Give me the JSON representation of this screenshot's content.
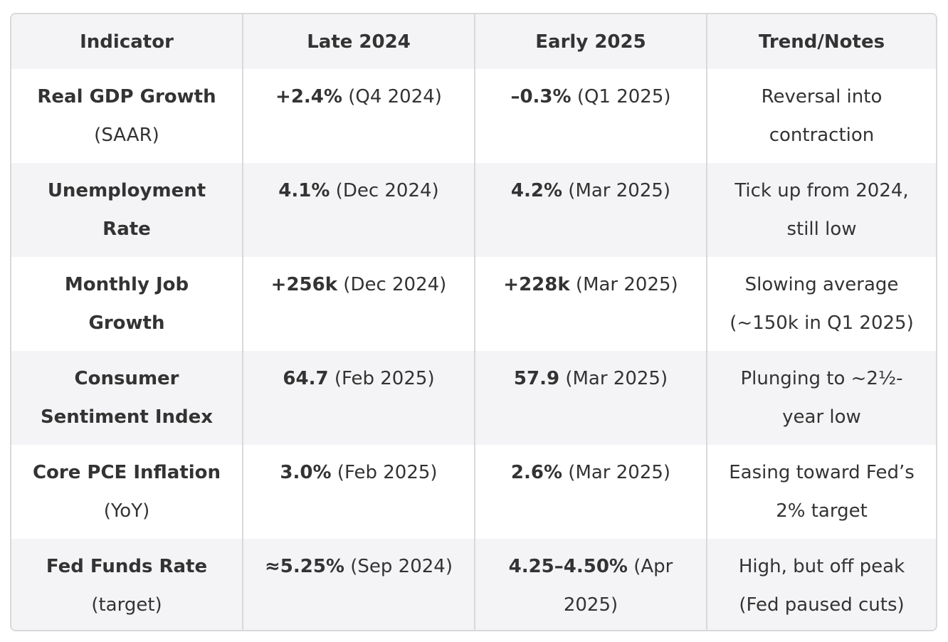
{
  "headers": [
    "Indicator",
    "Late 2024",
    "Early 2025",
    "Trend/Notes"
  ],
  "rows": [
    {
      "indicator": "Real GDP Growth",
      "indicator_sub": "(SAAR)",
      "late_value": "+2.4%",
      "late_note": "(Q4 2024)",
      "early_value": "–0.3%",
      "early_note": "(Q1 2025)",
      "trend": "Reversal into contraction"
    },
    {
      "indicator": "Unemployment Rate",
      "indicator_sub": "",
      "late_value": "4.1%",
      "late_note": "(Dec 2024)",
      "early_value": "4.2%",
      "early_note": "(Mar 2025)",
      "trend": "Tick up from 2024, still low"
    },
    {
      "indicator": "Monthly Job Growth",
      "indicator_sub": "",
      "late_value": "+256k",
      "late_note": "(Dec 2024)",
      "early_value": "+228k",
      "early_note": "(Mar 2025)",
      "trend": "Slowing average (~150k in Q1 2025)"
    },
    {
      "indicator": "Consumer Sentiment Index",
      "indicator_sub": "",
      "late_value": "64.7",
      "late_note": "(Feb 2025)",
      "early_value": "57.9",
      "early_note": "(Mar 2025)",
      "trend": "Plunging to ~2½-year low"
    },
    {
      "indicator": "Core PCE Inflation",
      "indicator_sub": "(YoY)",
      "late_value": "3.0%",
      "late_note": "(Feb 2025)",
      "early_value": "2.6%",
      "early_note": "(Mar 2025)",
      "trend": "Easing toward Fed’s 2% target"
    },
    {
      "indicator": "Fed Funds Rate",
      "indicator_sub": "(target)",
      "late_value": "≈5.25%",
      "late_note": "(Sep 2024)",
      "early_value": "4.25–4.50%",
      "early_note": "(Apr 2025)",
      "trend": "High, but off peak (Fed paused cuts)"
    }
  ]
}
